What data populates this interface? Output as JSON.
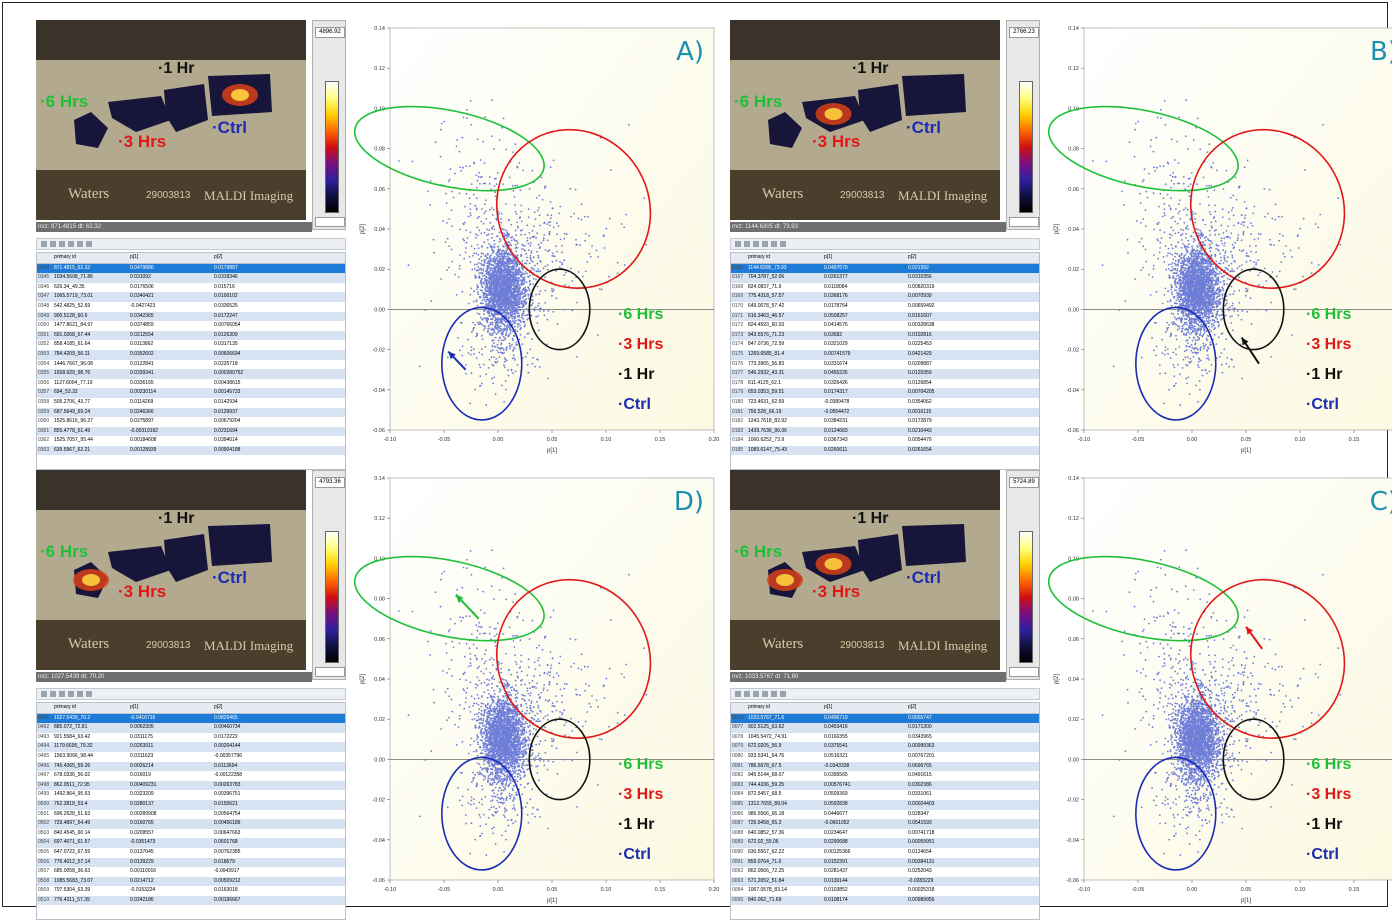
{
  "panels": [
    {
      "letter": "A)",
      "colorbar_max": "4896.92",
      "mz_label": "m/z: 871.4815 dt: 62.32",
      "table_header": [
        "",
        "primary id",
        "p[1]",
        "p[2]"
      ],
      "rows": [
        [
          "0342",
          "871.4815_62.32",
          "0.0479886",
          "0.0179887"
        ],
        [
          "0345",
          "1034.5608_71.86",
          "0.031092",
          "0.0318346"
        ],
        [
          "0346",
          "626.34_49.35",
          "0.0176506",
          "0.015716"
        ],
        [
          "0347",
          "1065.5719_73.01",
          "0.0340421",
          "0.0100102"
        ],
        [
          "0348",
          "542.4825_52.69",
          "-0.0427423",
          "0.0336525"
        ],
        [
          "0349",
          "900.5128_60.6",
          "0.0342365",
          "0.0172247"
        ],
        [
          "0350",
          "1477.8621_84.97",
          "0.0374859",
          "0.00766054"
        ],
        [
          "0351",
          "691.0268_57.44",
          "0.0212554",
          "0.0126309"
        ],
        [
          "0352",
          "858.4185_61.64",
          "0.0113862",
          "0.0317135"
        ],
        [
          "0353",
          "784.4209_56.11",
          "0.0352602",
          "0.00606694"
        ],
        [
          "0354",
          "1446.7667_96.08",
          "0.0122841",
          "0.0225718"
        ],
        [
          "0355",
          "1658.929_98.76",
          "0.0339341",
          "0.000280752"
        ],
        [
          "0356",
          "1127.6004_77.19",
          "0.0336165",
          "0.00438615"
        ],
        [
          "0357",
          "694_53.32",
          "0.00230114",
          "0.00145733"
        ],
        [
          "0358",
          "505.2706_43.77",
          "0.0114269",
          "0.0142934"
        ],
        [
          "0359",
          "687.5649_69.24",
          "0.0246366",
          "0.0129937"
        ],
        [
          "0360",
          "1525.8616_96.27",
          "0.0275897",
          "0.00679204"
        ],
        [
          "0361",
          "855.4778_61.49",
          "-0.00319192",
          "0.0231694"
        ],
        [
          "0362",
          "1525.7057_95.44",
          "0.00184608",
          "0.0394014"
        ],
        [
          "0363",
          "639.5967_62.21",
          "0.00128939",
          "0.00904188"
        ]
      ],
      "arrow_color": "#1b2cb4"
    },
    {
      "letter": "B)",
      "colorbar_max": "2766.23",
      "mz_label": "m/z: 1144.6305 dt: 73.93",
      "table_header": [
        "",
        "primary id",
        "p[1]",
        "p[2]"
      ],
      "rows": [
        [
          "0166",
          "1144.6305_73.93",
          "0.0497679",
          "0.021992"
        ],
        [
          "0167",
          "704.3787_52.06",
          "0.0261377",
          "0.0310356"
        ],
        [
          "0168",
          "824.0837_71.9",
          "0.0118084",
          "0.00820319"
        ],
        [
          "0169",
          "775.4318_57.57",
          "0.0368176",
          "0.0070939"
        ],
        [
          "0170",
          "649.0078_57.42",
          "0.0178764",
          "0.00659492"
        ],
        [
          "0171",
          "616.3463_46.57",
          "0.0508257",
          "0.0161607"
        ],
        [
          "0172",
          "824.4593_60.03",
          "0.0414576",
          "0.00328638"
        ],
        [
          "0173",
          "943.5576_71.23",
          "0.03682",
          "0.0102816"
        ],
        [
          "0174",
          "847.0736_72.59",
          "0.0321029",
          "0.0225453"
        ],
        [
          "0175",
          "1269.6585_81.4",
          "0.00741579",
          "0.0421429"
        ],
        [
          "0176",
          "773.3965_56.83",
          "0.0331674",
          "0.0209887"
        ],
        [
          "0177",
          "546.2932_43.31",
          "0.0455226",
          "0.0120359"
        ],
        [
          "0178",
          "611.4125_62.1",
          "0.0326426",
          "0.0126854"
        ],
        [
          "0179",
          "653.0353_59.51",
          "0.0174317",
          "0.00704205"
        ],
        [
          "0180",
          "723.4631_62.69",
          "-0.0389478",
          "0.0354062"
        ],
        [
          "0181",
          "756.528_66.19",
          "-0.0554472",
          "0.0016115"
        ],
        [
          "0182",
          "1243.7618_82.92",
          "0.0384231",
          "0.0172879"
        ],
        [
          "0183",
          "1439.7636_96.06",
          "0.0124683",
          "0.0210443"
        ],
        [
          "0184",
          "1060.6252_73.9",
          "0.0367343",
          "0.0054476"
        ],
        [
          "0185",
          "1089.6147_75.43",
          "0.0260611",
          "0.0261654"
        ]
      ],
      "arrow_color": "#111111"
    },
    {
      "letter": "D)",
      "colorbar_max": "4793.36",
      "mz_label": "m/z: 1027.5439 dt: 70.20",
      "table_header": [
        "",
        "primary id",
        "p[1]",
        "p[2]"
      ],
      "rows": [
        [
          "0491",
          "1027.5439_70.2",
          "-0.0416716",
          "0.0829465"
        ],
        [
          "0492",
          "885.072_72.81",
          "0.0062305",
          "0.00460734"
        ],
        [
          "0493",
          "921.5584_63.42",
          "0.0311175",
          "0.0172222"
        ],
        [
          "0494",
          "1179.6695_79.32",
          "0.0263911",
          "0.00204144"
        ],
        [
          "0495",
          "1563.9066_98.44",
          "0.0311623",
          "-0.00357796"
        ],
        [
          "0496",
          "745.4365_59.26",
          "0.0026214",
          "0.0113694"
        ],
        [
          "0497",
          "678.0336_56.02",
          "0.016019",
          "-0.00122358"
        ],
        [
          "0498",
          "862.0511_72.95",
          "0.00409231",
          "0.00263783"
        ],
        [
          "0499",
          "1492.864_95.63",
          "0.0323209",
          "0.00396751"
        ],
        [
          "0500",
          "762.3818_53.4",
          "0.0280137",
          "0.0155621"
        ],
        [
          "0501",
          "696.2628_51.63",
          "0.00289908",
          "0.00564754"
        ],
        [
          "0502",
          "729.4897_54.49",
          "0.0160765",
          "0.00456189"
        ],
        [
          "0503",
          "840.4545_60.14",
          "0.0209557",
          "0.00647663"
        ],
        [
          "0504",
          "697.4671_61.57",
          "-0.0351473",
          "0.0601768"
        ],
        [
          "0505",
          "647.0722_67.59",
          "0.0137045",
          "0.00762385"
        ],
        [
          "0506",
          "776.4012_57.14",
          "0.0139229",
          "0.018679"
        ],
        [
          "0507",
          "685.0058_36.63",
          "0.00110016",
          "-0.0043917"
        ],
        [
          "0508",
          "1085.5683_73.07",
          "0.0214712",
          "0.00509212"
        ],
        [
          "0509",
          "707.5304_63.39",
          "-0.0153224",
          "0.0163018"
        ],
        [
          "0510",
          "776.4311_57.39",
          "0.0242186",
          "0.00196667"
        ]
      ],
      "arrow_color": "#1ec038"
    },
    {
      "letter": "C)",
      "colorbar_max": "5724.89",
      "mz_label": "m/z: 1033.5767 dt: 71.60",
      "table_header": [
        "",
        "primary id",
        "p[1]",
        "p[2]"
      ],
      "rows": [
        [
          "0076",
          "1033.5767_71.6",
          "0.0496719",
          "0.0655747"
        ],
        [
          "0077",
          "902.5125_63.62",
          "0.0453416",
          "0.0171300"
        ],
        [
          "0078",
          "1045.5472_74.91",
          "0.0160355",
          "0.0343965"
        ],
        [
          "0079",
          "672.0205_56.9",
          "0.0375541",
          "0.00999363"
        ],
        [
          "0080",
          "933.5341_64.76",
          "0.0516321",
          "0.00767201"
        ],
        [
          "0081",
          "786.5678_67.5",
          "-0.0343338",
          "0.0696765"
        ],
        [
          "0082",
          "945.5144_68.07",
          "0.0395565",
          "0.0491615"
        ],
        [
          "0083",
          "744.4336_59.25",
          "0.00576741",
          "0.0302386"
        ],
        [
          "0084",
          "872.5457_68.5",
          "0.0509369",
          "0.0331061"
        ],
        [
          "0085",
          "1312.7655_89.04",
          "0.0592838",
          "0.00024403"
        ],
        [
          "0086",
          "986.5566_66.18",
          "0.0446677",
          "0.028347"
        ],
        [
          "0087",
          "725.5458_65.3",
          "-0.0661052",
          "0.0541593"
        ],
        [
          "0088",
          "640.0852_57.36",
          "0.0234647",
          "0.00741718"
        ],
        [
          "0089",
          "672.02_55.06",
          "0.0290688",
          "0.00059951"
        ],
        [
          "0090",
          "630.5567_62.22",
          "0.00125366",
          "0.0124654"
        ],
        [
          "0091",
          "859.0764_71.6",
          "0.0152391",
          "0.00384131"
        ],
        [
          "0092",
          "862.0566_72.25",
          "0.0281437",
          "0.0252043"
        ],
        [
          "0093",
          "571.2052_51.84",
          "0.0130144",
          "-0.0283229"
        ],
        [
          "0094",
          "1067.0578_83.14",
          "0.0103852",
          "0.00025318"
        ],
        [
          "0095",
          "840.062_71.69",
          "0.0108174",
          "0.00989956"
        ]
      ],
      "arrow_color": "#e01818"
    }
  ],
  "tissue_labels": {
    "six": "·6 Hrs",
    "three": "·3 Hrs",
    "one": "·1 Hr",
    "ctrl": "·Ctrl"
  },
  "image_texts": {
    "waters": "Waters",
    "slide_id": "29003813",
    "maldi": "MALDI Imaging"
  },
  "legend": [
    "·6 Hrs",
    "·3 Hrs",
    "·1 Hr",
    "·Ctrl"
  ],
  "colors": {
    "six": "#1ec038",
    "three": "#e01818",
    "one": "#111111",
    "ctrl": "#1b2cb4",
    "points": "#6e7ed8",
    "plot_bg": "#fbf9e0",
    "letter": "#1d8fb0"
  },
  "chart_data": {
    "type": "scatter",
    "xlabel": "p[1]",
    "ylabel": "p[2]",
    "xlim": [
      -0.1,
      0.2
    ],
    "ylim": [
      -0.06,
      0.14
    ],
    "xticks": [
      "-0.10",
      "-0.05",
      "0.00",
      "0.05",
      "0.10",
      "0.15",
      "0.20"
    ],
    "yticks": [
      "-0.06",
      "-0.04",
      "-0.02",
      "0.00",
      "0.02",
      "0.04",
      "0.06",
      "0.08",
      "0.10",
      "0.12",
      "0.14"
    ],
    "grid": false,
    "regions": [
      {
        "name": "·6 Hrs",
        "color": "#1ec038",
        "cx": -0.045,
        "cy": 0.08,
        "rx": 0.035,
        "ry": 0.048,
        "rot": -78
      },
      {
        "name": "·3 Hrs",
        "color": "#e01818",
        "cx": 0.07,
        "cy": 0.05,
        "rx": 0.07,
        "ry": 0.04,
        "rot": -30
      },
      {
        "name": "·1 Hr",
        "color": "#111111",
        "cx": 0.057,
        "cy": 0.0,
        "rx": 0.028,
        "ry": 0.02,
        "rot": 0
      },
      {
        "name": "·Ctrl",
        "color": "#1b2cb4",
        "cx": -0.015,
        "cy": -0.027,
        "rx": 0.037,
        "ry": 0.028,
        "rot": 0
      }
    ],
    "arrows": [
      {
        "panel": 0,
        "from": [
          -0.03,
          -0.03
        ],
        "to": [
          -0.046,
          -0.021
        ]
      },
      {
        "panel": 1,
        "from": [
          0.062,
          -0.027
        ],
        "to": [
          0.046,
          -0.014
        ]
      },
      {
        "panel": 2,
        "from": [
          -0.018,
          0.07
        ],
        "to": [
          -0.039,
          0.082
        ]
      },
      {
        "panel": 3,
        "from": [
          0.065,
          0.055
        ],
        "to": [
          0.05,
          0.066
        ]
      }
    ],
    "point_clusters": [
      {
        "cx": 0.005,
        "cy": 0.01,
        "sx": 0.01,
        "sy": 0.01,
        "n": 2200
      },
      {
        "cx": 0.02,
        "cy": 0.025,
        "sx": 0.025,
        "sy": 0.018,
        "n": 350
      },
      {
        "cx": -0.03,
        "cy": 0.055,
        "sx": 0.018,
        "sy": 0.025,
        "n": 120
      },
      {
        "cx": 0.05,
        "cy": 0.035,
        "sx": 0.04,
        "sy": 0.02,
        "n": 120
      },
      {
        "cx": 0.0,
        "cy": -0.02,
        "sx": 0.018,
        "sy": 0.012,
        "n": 180
      }
    ]
  }
}
